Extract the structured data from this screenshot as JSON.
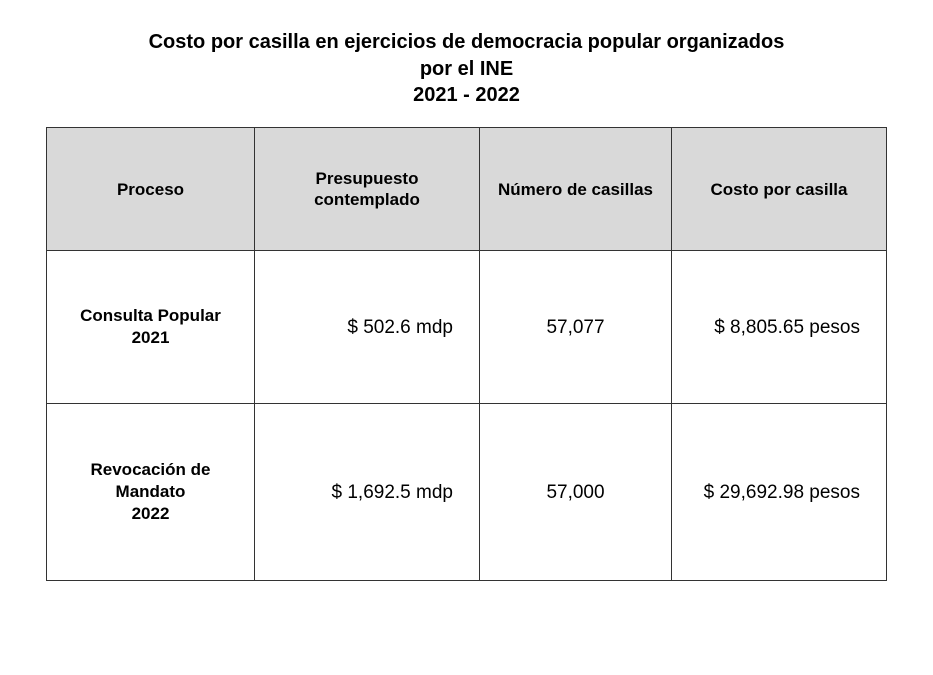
{
  "header": {
    "title_lines": [
      "Costo por casilla en ejercicios de democracia popular organizados",
      "por el INE",
      "2021 - 2022"
    ]
  },
  "table": {
    "columns": [
      [
        "Proceso"
      ],
      [
        "Presupuesto",
        "contemplado"
      ],
      [
        "Número de casillas"
      ],
      [
        "Costo por casilla"
      ]
    ],
    "rows": [
      [
        [
          "Consulta Popular",
          "2021"
        ],
        [
          "$ 502.6 mdp"
        ],
        [
          "57,077"
        ],
        [
          "$ 8,805.65 pesos"
        ]
      ],
      [
        [
          "Revocación de",
          "Mandato",
          "2022"
        ],
        [
          "$ 1,692.5 mdp"
        ],
        [
          "57,000"
        ],
        [
          "$ 29,692.98 pesos"
        ]
      ]
    ]
  }
}
